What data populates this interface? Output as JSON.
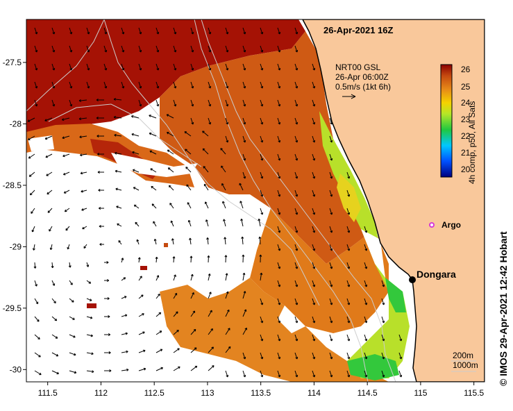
{
  "map": {
    "title": "26-Apr-2021 16Z",
    "current_note": [
      "NRT00 GSL",
      "26-Apr 06:00Z",
      "0.5m/s (1kt 6h)"
    ],
    "colorbar_label": "4h comp, p50, All Sats",
    "colorbar_ticks": [
      "26",
      "25",
      "24",
      "23",
      "22",
      "21",
      "20"
    ],
    "colors": {
      "land": "#f9c89b",
      "no_data": "#ffffff",
      "sst_warm": "#a51205",
      "sst_mid": "#d2691e",
      "sst_cool": "#9acd32",
      "sst_cold": "#32cd32",
      "argo_marker": "#d63ad6"
    },
    "places": [
      {
        "name": "Dongara",
        "lon": 114.93,
        "lat": -29.25
      },
      {
        "name": "Argo",
        "lon": 115.1,
        "lat": -28.88
      }
    ],
    "depth_legend": [
      "200m",
      "1000m"
    ],
    "credit": "© IMOS 29-Apr-2021 12:42 Hobart",
    "x_ticks": [
      "111.5",
      "112",
      "112.5",
      "113",
      "113.5",
      "114",
      "114.5",
      "115",
      "115.5"
    ],
    "y_ticks": [
      "-27.5",
      "-28",
      "-28.5",
      "-29",
      "-29.5",
      "-30"
    ],
    "lon_range": [
      111.3,
      115.6
    ],
    "lat_range": [
      -30.1,
      -27.15
    ]
  }
}
